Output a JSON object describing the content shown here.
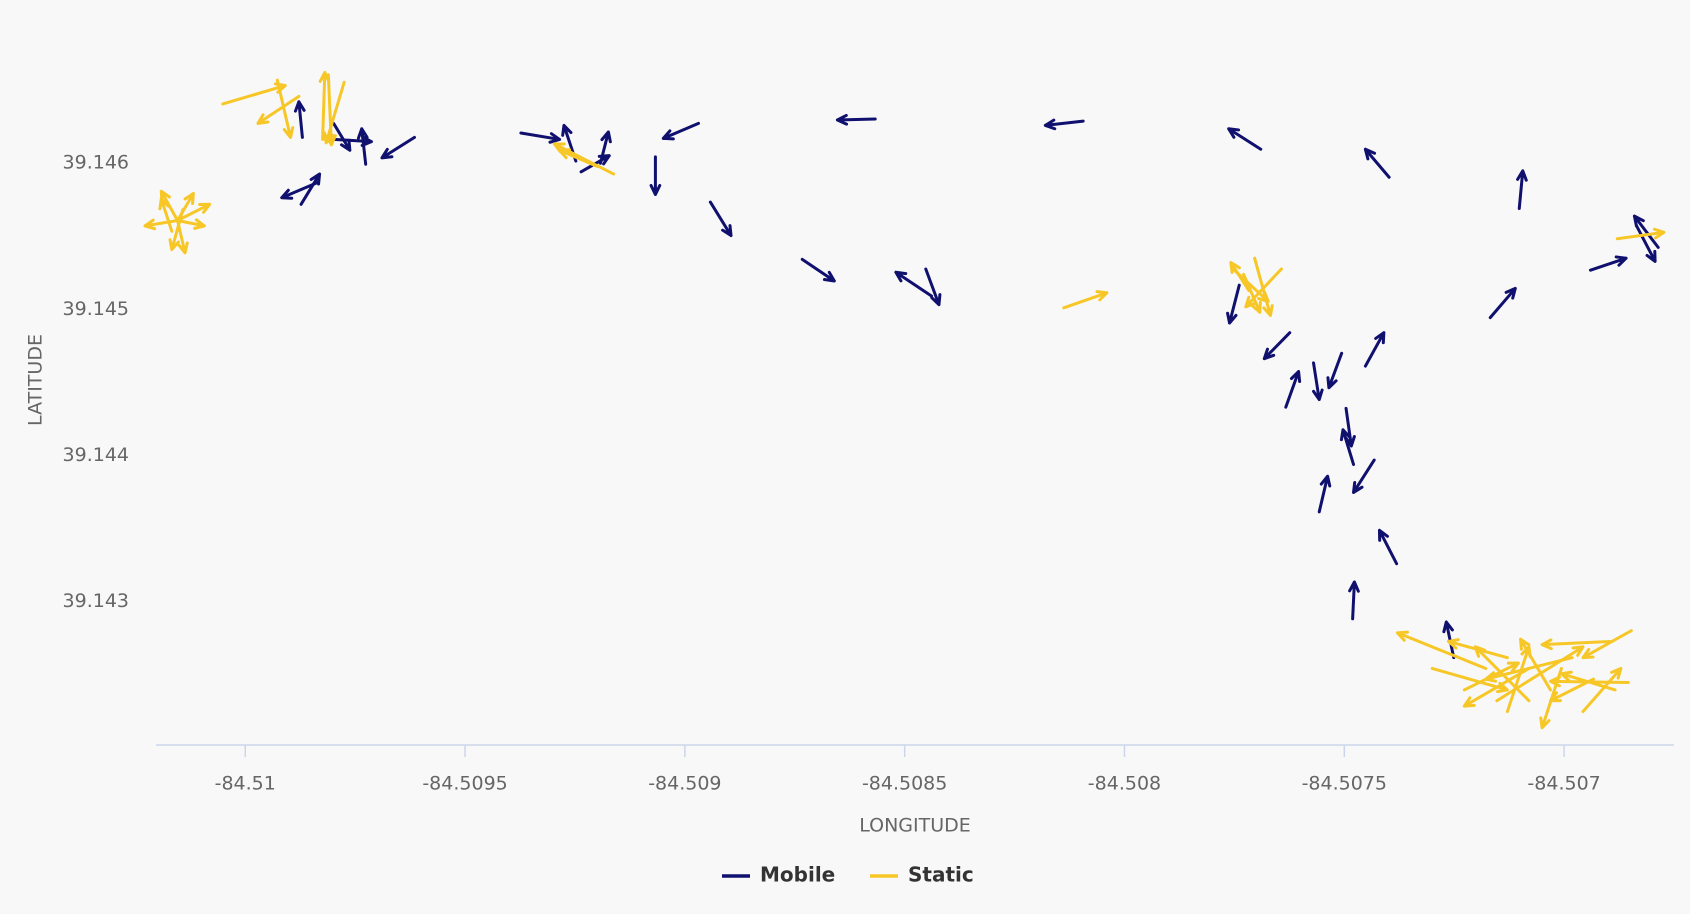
{
  "chart_data": {
    "type": "vector",
    "x_label": "LONGITUDE",
    "y_label": "LATITUDE",
    "xlim": [
      -84.510203,
      -84.50675
    ],
    "ylim": [
      39.142017,
      39.1467
    ],
    "xticks": [
      -84.51,
      -84.5095,
      -84.509,
      -84.5085,
      -84.508,
      -84.5075,
      -84.507
    ],
    "yticks": [
      39.143,
      39.144,
      39.145,
      39.146
    ],
    "grid": false,
    "legend": "bottom",
    "series": [
      {
        "name": "Mobile",
        "color": "#10106e",
        "x": [
          -84.509615,
          -84.509726,
          -84.509799,
          -84.509799,
          -84.50987,
          -84.509873,
          -84.509836,
          -84.509373,
          -84.509248,
          -84.509236,
          -84.509192,
          -84.508969,
          -84.509067,
          -84.508942,
          -84.508733,
          -84.508452,
          -84.508439,
          -84.508567,
          -84.508094,
          -84.50769,
          -84.507398,
          -84.507102,
          -84.507168,
          -84.50694,
          -84.506786,
          -84.506835,
          -84.507739,
          -84.507624,
          -84.507633,
          -84.50757,
          -84.507506,
          -84.507452,
          -84.507496,
          -84.507479,
          -84.507432,
          -84.507557,
          -84.507381,
          -84.507481,
          -84.507251
        ],
        "y": [
          39.146177,
          39.145993,
          39.146273,
          39.146163,
          39.146177,
          39.145719,
          39.145867,
          39.146207,
          39.146015,
          39.145941,
          39.146,
          39.146273,
          39.146044,
          39.145734,
          39.145342,
          39.145276,
          39.145091,
          39.146303,
          39.146288,
          39.146096,
          39.145904,
          39.14569,
          39.144943,
          39.145268,
          39.145424,
          39.145571,
          39.145165,
          39.14484,
          39.14433,
          39.144633,
          39.144699,
          39.144611,
          39.144322,
          39.143938,
          39.143968,
          39.143613,
          39.143258,
          39.142881,
          39.142615
        ],
        "x2": [
          -84.509689,
          -84.509735,
          -84.509762,
          -84.509713,
          -84.509878,
          -84.509831,
          -84.509917,
          -84.509285,
          -84.509275,
          -84.509172,
          -84.509174,
          -84.509049,
          -84.509067,
          -84.508895,
          -84.50866,
          -84.508422,
          -84.50852,
          -84.508653,
          -84.50818,
          -84.507763,
          -84.507452,
          -84.507094,
          -84.507111,
          -84.506859,
          -84.50684,
          -84.506793,
          -84.507761,
          -84.507682,
          -84.507604,
          -84.507557,
          -84.507535,
          -84.50741,
          -84.507484,
          -84.507503,
          -84.507479,
          -84.507538,
          -84.50742,
          -84.507477,
          -84.507268
        ],
        "y2": [
          39.146037,
          39.146236,
          39.146089,
          39.146148,
          39.146421,
          39.145926,
          39.145764,
          39.146163,
          39.146259,
          39.146052,
          39.146214,
          39.14617,
          39.145786,
          39.145505,
          39.145194,
          39.145032,
          39.145254,
          39.146296,
          39.146259,
          39.146236,
          39.146096,
          39.145948,
          39.145143,
          39.14535,
          39.145638,
          39.145328,
          39.144906,
          39.144662,
          39.144574,
          39.144382,
          39.144463,
          39.14484,
          39.144064,
          39.144175,
          39.143746,
          39.143857,
          39.143487,
          39.143133,
          39.142859
        ]
      },
      {
        "name": "Static",
        "color": "#f7c728",
        "x": [
          -84.510051,
          -84.509878,
          -84.509927,
          -84.509775,
          -84.509824,
          -84.509811,
          -84.509162,
          -84.509199,
          -84.508138,
          -84.507704,
          -84.507643,
          -84.507753,
          -84.507717,
          -84.507729,
          -84.506879,
          -84.510154,
          -84.510154,
          -84.510154,
          -84.510154,
          -84.510154,
          -84.510154,
          -84.510167,
          -84.510142,
          -84.507178,
          -84.507129,
          -84.506896,
          -84.506847,
          -84.506854,
          -84.50708,
          -84.507031,
          -84.507227,
          -84.507006,
          -84.506957,
          -84.5073,
          -84.50708,
          -84.506933,
          -84.507153,
          -84.506982,
          -84.507129,
          -84.506884
        ],
        "y": [
          39.146406,
          39.146458,
          39.146569,
          39.146554,
          39.146163,
          39.146606,
          39.145926,
          39.145978,
          39.14501,
          39.14535,
          39.145276,
          39.145276,
          39.145128,
          39.145239,
          39.145483,
          39.145608,
          39.145608,
          39.145608,
          39.145608,
          39.145608,
          39.145608,
          39.145534,
          39.145682,
          39.142541,
          39.142615,
          39.142726,
          39.1428,
          39.142445,
          39.14232,
          39.142394,
          39.142394,
          39.142541,
          39.142246,
          39.142541,
          39.142541,
          39.142468,
          39.14232,
          39.142615,
          39.142246,
          39.142394
        ],
        "x2": [
          -84.509909,
          -84.509971,
          -84.509897,
          -84.509816,
          -84.509819,
          -84.509804,
          -84.509297,
          -84.509285,
          -84.50804,
          -84.507668,
          -84.507724,
          -84.507673,
          -84.507758,
          -84.507692,
          -84.506773,
          -84.510228,
          -84.510118,
          -84.510081,
          -84.510137,
          -84.510191,
          -84.510093,
          -84.510191,
          -84.510167,
          -84.507379,
          -84.507263,
          -84.50705,
          -84.506957,
          -84.507031,
          -84.507202,
          -84.507099,
          -84.507104,
          -84.50705,
          -84.506871,
          -84.507129,
          -84.507227,
          -84.507031,
          -84.506957,
          -84.507178,
          -84.50708,
          -84.507006
        ],
        "y2": [
          39.146532,
          39.146273,
          39.146177,
          39.14614,
          39.146621,
          39.146126,
          39.146133,
          39.146089,
          39.145113,
          39.144958,
          39.145017,
          39.145054,
          39.14532,
          39.14498,
          39.145527,
          39.145571,
          39.145793,
          39.145719,
          39.145387,
          39.145808,
          39.145571,
          39.145756,
          39.145409,
          39.142785,
          39.142726,
          39.142704,
          39.142615,
          39.142453,
          39.142689,
          39.142741,
          39.142578,
          39.142135,
          39.142541,
          39.142394,
          39.142283,
          39.14232,
          39.142689,
          39.142468,
          39.142689,
          39.142505
        ]
      }
    ]
  }
}
